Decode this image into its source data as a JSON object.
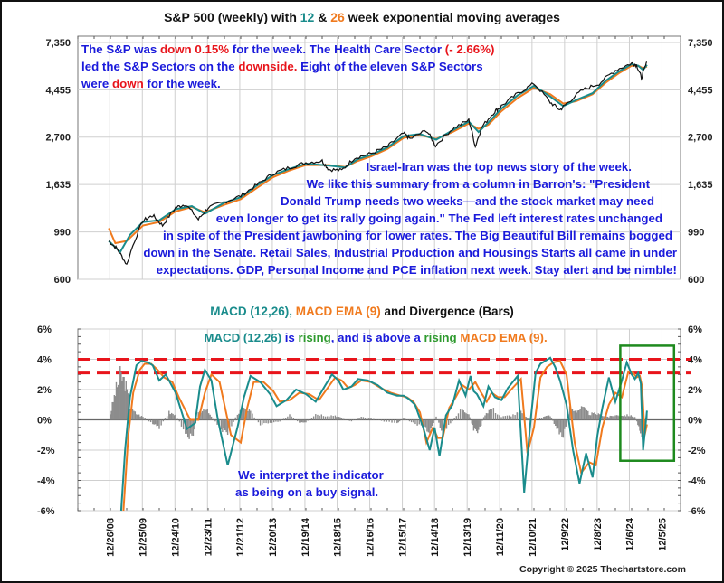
{
  "colors": {
    "ema12": "#1a8c8c",
    "ema26": "#f07a1e",
    "price": "#111111",
    "annotation": "#1a1adb",
    "highlight_red": "#e8141b",
    "rising_green": "#2e9a2e",
    "divergence_bars": "#8c8c8c",
    "threshold_lines": "#e8141b",
    "box": "#1e8a1e"
  },
  "chart_data": [
    {
      "type": "line",
      "title_parts": {
        "pre": "S&P 500 (weekly) with ",
        "n1": "12",
        "amp": " & ",
        "n2": "26",
        "post": " week exponential moving averages"
      },
      "yscale": "log",
      "ylim": [
        600,
        7350
      ],
      "yticks": [
        "7,350",
        "4,455",
        "2,700",
        "1,635",
        "990",
        "600"
      ],
      "ytick_values": [
        7350,
        4455,
        2700,
        1635,
        990,
        600
      ],
      "grid": true,
      "series": [
        {
          "name": "S&P 500 (weekly)",
          "x": [
            2008.95,
            2009.2,
            2009.5,
            2010.0,
            2010.3,
            2010.6,
            2011.0,
            2011.3,
            2011.7,
            2012.0,
            2012.5,
            2013.0,
            2013.5,
            2014.0,
            2014.5,
            2015.0,
            2015.5,
            2015.7,
            2016.1,
            2016.5,
            2017.0,
            2017.5,
            2018.0,
            2018.2,
            2018.7,
            2018.98,
            2019.5,
            2020.0,
            2020.2,
            2020.4,
            2020.8,
            2021.0,
            2021.5,
            2022.0,
            2022.5,
            2022.8,
            2023.0,
            2023.5,
            2024.0,
            2024.5,
            2025.0,
            2025.15,
            2025.3,
            2025.47
          ],
          "values": [
            900,
            830,
            700,
            1115,
            1180,
            1060,
            1280,
            1330,
            1130,
            1280,
            1360,
            1450,
            1630,
            1840,
            1960,
            2060,
            2100,
            1920,
            1900,
            2170,
            2270,
            2440,
            2810,
            2650,
            2900,
            2470,
            2950,
            3230,
            2440,
            3000,
            3550,
            3750,
            4280,
            4760,
            3900,
            3600,
            3850,
            4450,
            4760,
            5480,
            5900,
            5800,
            5050,
            5980
          ]
        },
        {
          "name": "12 week EMA",
          "x": [
            2008.95,
            2009.3,
            2009.6,
            2010.0,
            2010.5,
            2011.0,
            2011.5,
            2011.9,
            2012.5,
            2013.0,
            2013.5,
            2014.0,
            2014.5,
            2015.0,
            2015.7,
            2016.2,
            2016.6,
            2017.0,
            2017.5,
            2018.0,
            2018.5,
            2019.0,
            2019.5,
            2020.0,
            2020.3,
            2020.6,
            2021.0,
            2021.5,
            2022.0,
            2022.5,
            2022.9,
            2023.3,
            2023.8,
            2024.2,
            2024.6,
            2025.0,
            2025.2,
            2025.35,
            2025.47
          ],
          "values": [
            900,
            800,
            960,
            1100,
            1120,
            1260,
            1300,
            1200,
            1350,
            1430,
            1620,
            1810,
            1930,
            2040,
            2000,
            1960,
            2140,
            2240,
            2420,
            2730,
            2790,
            2630,
            2900,
            3180,
            2850,
            3150,
            3650,
            4200,
            4650,
            4150,
            3750,
            4000,
            4300,
            4900,
            5400,
            5850,
            5750,
            5500,
            5800
          ]
        },
        {
          "name": "26 week EMA",
          "x": [
            2008.95,
            2009.15,
            2009.5,
            2010.0,
            2010.5,
            2011.0,
            2011.5,
            2011.9,
            2012.5,
            2013.0,
            2013.5,
            2014.0,
            2014.5,
            2015.0,
            2015.7,
            2016.2,
            2016.6,
            2017.0,
            2017.5,
            2018.0,
            2018.5,
            2019.0,
            2019.5,
            2020.0,
            2020.3,
            2020.6,
            2021.0,
            2021.5,
            2022.0,
            2022.5,
            2022.9,
            2023.3,
            2023.8,
            2024.2,
            2024.6,
            2025.0,
            2025.2,
            2025.35,
            2025.47
          ],
          "values": [
            1030,
            880,
            900,
            1060,
            1100,
            1230,
            1290,
            1220,
            1320,
            1400,
            1580,
            1770,
            1900,
            2010,
            2010,
            1970,
            2100,
            2200,
            2380,
            2680,
            2760,
            2650,
            2850,
            3120,
            2950,
            3080,
            3550,
            4080,
            4550,
            4250,
            3850,
            3950,
            4250,
            4800,
            5300,
            5750,
            5750,
            5600,
            5700
          ]
        }
      ],
      "annotations": {
        "box1": {
          "line1": [
            {
              "t": "The S&P was ",
              "c": "blue"
            },
            {
              "t": "down 0.15%",
              "c": "red"
            },
            {
              "t": " for the week. The Health Care Sector ",
              "c": "blue"
            },
            {
              "t": "(- 2.66%)",
              "c": "red"
            }
          ],
          "line2": [
            {
              "t": "led the S&P Sectors on the ",
              "c": "blue"
            },
            {
              "t": "downside.",
              "c": "red"
            },
            {
              "t": "  Eight of the eleven S&P Sectors",
              "c": "blue"
            }
          ],
          "line3": [
            {
              "t": "were ",
              "c": "blue"
            },
            {
              "t": "down",
              "c": "red"
            },
            {
              "t": " for the week.",
              "c": "blue"
            }
          ]
        },
        "box2": [
          "Israel-Iran was the top news story of the week.",
          "We like this summary from a column in Barron's:  \"President",
          "Donald Trump needs two weeks—and the stock market may need",
          "even longer to get its rally going again.\"  The Fed left interest rates unchanged",
          "in spite of the President jawboning for lower rates. The Big Beautiful Bill remains bogged",
          "down in the Senate.  Retail Sales, Industrial Production and Housings Starts all came in under",
          "expectations.  GDP, Personal Income and PCE inflation next week.  Stay alert and be nimble!"
        ]
      }
    },
    {
      "type": "line",
      "title_parts": {
        "macd": "MACD (12,26)",
        "sep": ", ",
        "ema": "MACD EMA (9)",
        "post": " and Divergence (Bars)"
      },
      "ylim": [
        -6,
        6
      ],
      "yticks": [
        "6%",
        "4%",
        "2%",
        "0%",
        "-2%",
        "-4%",
        "-6%"
      ],
      "ytick_values": [
        6,
        4,
        2,
        0,
        -2,
        -4,
        -6
      ],
      "thresholds": [
        4.0,
        3.1
      ],
      "grid": true,
      "series": [
        {
          "name": "MACD (12,26)",
          "x": [
            2009.33,
            2009.45,
            2009.6,
            2009.8,
            2009.95,
            2010.15,
            2010.3,
            2010.5,
            2010.7,
            2011.0,
            2011.35,
            2011.6,
            2011.75,
            2011.9,
            2012.1,
            2012.3,
            2012.6,
            2012.9,
            2013.1,
            2013.3,
            2013.6,
            2013.9,
            2014.1,
            2014.4,
            2014.7,
            2015.0,
            2015.3,
            2015.6,
            2015.8,
            2016.0,
            2016.15,
            2016.4,
            2016.6,
            2016.9,
            2017.2,
            2017.5,
            2017.8,
            2018.0,
            2018.15,
            2018.35,
            2018.6,
            2018.8,
            2018.95,
            2019.1,
            2019.3,
            2019.5,
            2019.7,
            2019.9,
            2020.05,
            2020.15,
            2020.25,
            2020.45,
            2020.6,
            2020.8,
            2021.0,
            2021.2,
            2021.5,
            2021.7,
            2021.9,
            2022.05,
            2022.2,
            2022.35,
            2022.5,
            2022.65,
            2022.8,
            2023.0,
            2023.2,
            2023.4,
            2023.6,
            2023.8,
            2023.95,
            2024.1,
            2024.3,
            2024.5,
            2024.7,
            2024.85,
            2025.0,
            2025.1,
            2025.2,
            2025.28,
            2025.35,
            2025.47
          ],
          "values": [
            -6.0,
            -2.0,
            1.5,
            3.6,
            3.9,
            3.8,
            3.6,
            2.6,
            3.0,
            1.8,
            -0.6,
            -0.2,
            2.2,
            3.3,
            2.6,
            0.0,
            -3.0,
            -0.5,
            1.5,
            2.9,
            2.5,
            1.7,
            0.9,
            1.3,
            2.0,
            1.7,
            1.2,
            2.3,
            3.0,
            2.6,
            2.0,
            2.2,
            2.7,
            2.6,
            2.3,
            1.8,
            1.6,
            1.6,
            1.4,
            1.0,
            -0.5,
            -2.0,
            -0.5,
            -2.4,
            0.3,
            1.0,
            2.6,
            1.6,
            2.9,
            1.9,
            1.7,
            0.9,
            2.2,
            1.5,
            1.3,
            2.1,
            2.9,
            -4.8,
            0.0,
            3.1,
            3.7,
            3.9,
            4.1,
            3.5,
            2.6,
            1.0,
            -2.0,
            -4.2,
            -2.2,
            -3.8,
            -1.0,
            0.8,
            2.8,
            1.2,
            2.6,
            3.8,
            3.0,
            2.7,
            3.1,
            2.4,
            -2.0,
            0.6
          ]
        },
        {
          "name": "MACD EMA (9)",
          "x": [
            2009.4,
            2009.55,
            2009.7,
            2009.9,
            2010.05,
            2010.25,
            2010.45,
            2010.65,
            2010.9,
            2011.1,
            2011.45,
            2011.7,
            2011.9,
            2012.1,
            2012.35,
            2012.7,
            2013.0,
            2013.2,
            2013.4,
            2013.7,
            2014.0,
            2014.2,
            2014.5,
            2014.8,
            2015.1,
            2015.4,
            2015.7,
            2015.9,
            2016.1,
            2016.3,
            2016.5,
            2016.7,
            2017.0,
            2017.3,
            2017.6,
            2017.9,
            2018.1,
            2018.3,
            2018.5,
            2018.7,
            2018.9,
            2019.05,
            2019.2,
            2019.4,
            2019.6,
            2019.8,
            2020.0,
            2020.2,
            2020.35,
            2020.55,
            2020.7,
            2020.9,
            2021.1,
            2021.3,
            2021.6,
            2021.8,
            2022.0,
            2022.2,
            2022.4,
            2022.6,
            2022.8,
            2023.0,
            2023.25,
            2023.45,
            2023.7,
            2023.9,
            2024.1,
            2024.3,
            2024.5,
            2024.7,
            2024.9,
            2025.05,
            2025.15,
            2025.25,
            2025.32,
            2025.4,
            2025.47
          ],
          "values": [
            -6.0,
            -1.0,
            1.8,
            3.3,
            3.7,
            3.7,
            3.3,
            2.8,
            2.5,
            1.5,
            0.0,
            0.0,
            1.8,
            3.0,
            2.5,
            -1.0,
            -1.5,
            0.8,
            2.5,
            2.5,
            1.9,
            1.2,
            1.3,
            1.8,
            1.7,
            1.3,
            2.2,
            2.8,
            2.6,
            2.1,
            2.3,
            2.6,
            2.5,
            2.1,
            1.8,
            1.6,
            1.5,
            1.2,
            0.5,
            -1.5,
            -0.5,
            -1.2,
            -1.2,
            0.8,
            1.5,
            2.3,
            2.0,
            2.5,
            1.9,
            1.2,
            1.8,
            1.5,
            1.5,
            2.0,
            2.7,
            -2.2,
            -0.5,
            2.8,
            3.5,
            3.8,
            3.9,
            3.0,
            -1.5,
            -3.5,
            -2.8,
            -3.0,
            -0.5,
            1.0,
            1.8,
            1.5,
            3.2,
            3.1,
            2.8,
            2.9,
            2.2,
            -1.0,
            -0.3
          ]
        },
        {
          "name": "Divergence (Bars)",
          "x": [
            2009.0,
            2009.15,
            2009.3,
            2009.45,
            2009.6,
            2009.8,
            2010.0,
            2010.3,
            2010.5,
            2010.8,
            2011.0,
            2011.3,
            2011.5,
            2011.7,
            2011.9,
            2012.1,
            2012.4,
            2012.6,
            2012.9,
            2013.1,
            2013.3,
            2013.6,
            2013.9,
            2014.2,
            2014.5,
            2014.8,
            2015.0,
            2015.3,
            2015.6,
            2015.9,
            2016.1,
            2016.4,
            2016.7,
            2017.0,
            2017.4,
            2017.8,
            2018.0,
            2018.3,
            2018.6,
            2018.8,
            2019.0,
            2019.2,
            2019.5,
            2019.8,
            2020.0,
            2020.15,
            2020.3,
            2020.5,
            2020.7,
            2021.0,
            2021.3,
            2021.6,
            2021.8,
            2022.0,
            2022.3,
            2022.5,
            2022.7,
            2022.9,
            2023.1,
            2023.3,
            2023.5,
            2023.7,
            2023.9,
            2024.1,
            2024.3,
            2024.5,
            2024.7,
            2024.9,
            2025.1,
            2025.25,
            2025.35,
            2025.47
          ],
          "values": [
            0.4,
            1.8,
            2.9,
            2.5,
            0.8,
            0.4,
            0.2,
            -0.3,
            -0.5,
            0.5,
            0.3,
            -0.8,
            -1.2,
            0.5,
            0.8,
            0.2,
            -0.6,
            -0.9,
            0.4,
            0.9,
            0.5,
            -0.3,
            -0.2,
            -0.1,
            0.3,
            -0.2,
            -0.2,
            0.4,
            0.3,
            0.3,
            0.1,
            -0.1,
            0.2,
            0.1,
            -0.1,
            -0.2,
            0.1,
            -0.2,
            -0.5,
            -0.8,
            0.2,
            -0.9,
            -0.1,
            0.8,
            0.4,
            -0.6,
            -0.8,
            0.4,
            0.8,
            0.2,
            0.3,
            0.5,
            0.1,
            0.0,
            0.2,
            0.3,
            -0.6,
            -1.2,
            0.8,
            0.6,
            0.8,
            0.4,
            0.4,
            0.3,
            0.2,
            0.3,
            0.3,
            0.3,
            0.2,
            -0.6,
            -1.4,
            0.4
          ]
        }
      ],
      "annotations": {
        "status_line": [
          {
            "t": "MACD (12,26)",
            "c": "teal"
          },
          {
            "t": " is ",
            "c": "blue"
          },
          {
            "t": "rising",
            "c": "green"
          },
          {
            "t": ", and is above a ",
            "c": "blue"
          },
          {
            "t": "rising",
            "c": "green"
          },
          {
            "t": " ",
            "c": "blue"
          },
          {
            "t": "MACD EMA (9).",
            "c": "orange"
          }
        ],
        "signal_line1": "We interpret the indicator",
        "signal_line2": "as being on a buy signal."
      }
    }
  ],
  "x_axis": {
    "tick_labels": [
      "12/26/08",
      "12/25/09",
      "12/24/10",
      "12/23/11",
      "12/21/12",
      "12/20/13",
      "12/19/14",
      "12/18/15",
      "12/16/16",
      "12/15/17",
      "12/14/18",
      "12/13/19",
      "12/11/20",
      "12/10/21",
      "12/9/22",
      "12/8/23",
      "12/6/24",
      "12/5/25"
    ],
    "tick_values": [
      2008.98,
      2009.98,
      2010.98,
      2011.98,
      2012.97,
      2013.97,
      2014.97,
      2015.96,
      2016.96,
      2017.96,
      2018.95,
      2019.95,
      2020.95,
      2021.94,
      2022.94,
      2023.94,
      2024.93,
      2025.93
    ]
  },
  "footer": {
    "copyright": "Copyright © 2025 Thechartstore.com"
  }
}
